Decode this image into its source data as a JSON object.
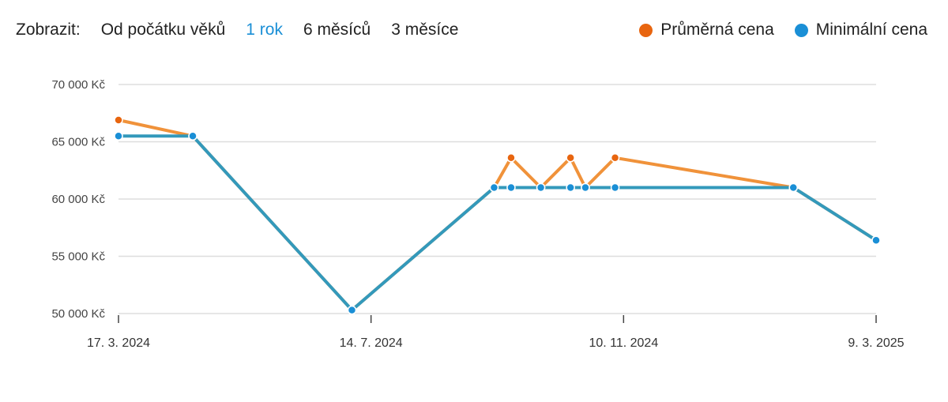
{
  "toolbar": {
    "label": "Zobrazit:",
    "ranges": [
      {
        "label": "Od počátku věků",
        "active": false
      },
      {
        "label": "1 rok",
        "active": true
      },
      {
        "label": "6 měsíců",
        "active": false
      },
      {
        "label": "3 měsíce",
        "active": false
      }
    ],
    "active_color": "#1a8fd6"
  },
  "legend": [
    {
      "label": "Průměrná cena",
      "color": "#e8650f"
    },
    {
      "label": "Minimální cena",
      "color": "#1a8fd6"
    }
  ],
  "chart_data": {
    "type": "line",
    "x_range": [
      "2024-03-17",
      "2025-03-09"
    ],
    "ylim": [
      50000,
      70000
    ],
    "y_ticks": [
      {
        "value": 70000,
        "label": "70 000 Kč"
      },
      {
        "value": 65000,
        "label": "65 000 Kč"
      },
      {
        "value": 60000,
        "label": "60 000 Kč"
      },
      {
        "value": 55000,
        "label": "55 000 Kč"
      },
      {
        "value": 50000,
        "label": "50 000 Kč"
      }
    ],
    "x_ticks": [
      {
        "date": "2024-03-17",
        "label": "17. 3. 2024"
      },
      {
        "date": "2024-07-14",
        "label": "14. 7. 2024"
      },
      {
        "date": "2024-11-10",
        "label": "10. 11. 2024"
      },
      {
        "date": "2025-03-09",
        "label": "9. 3. 2025"
      }
    ],
    "grid": true,
    "series": [
      {
        "name": "Průměrná cena",
        "color": "#f0923a",
        "marker_color": "#e8650f",
        "points": [
          [
            "2024-03-17",
            66900
          ],
          [
            "2024-04-21",
            65500
          ],
          [
            "2024-07-05",
            50300
          ],
          [
            "2024-09-10",
            61000
          ],
          [
            "2024-09-18",
            63600
          ],
          [
            "2024-10-02",
            61000
          ],
          [
            "2024-10-16",
            63600
          ],
          [
            "2024-10-23",
            61000
          ],
          [
            "2024-11-06",
            63600
          ],
          [
            "2025-01-29",
            61000
          ],
          [
            "2025-03-09",
            56400
          ]
        ]
      },
      {
        "name": "Minimální cena",
        "color": "#3399bb",
        "marker_color": "#1a8fd6",
        "points": [
          [
            "2024-03-17",
            65500
          ],
          [
            "2024-04-21",
            65500
          ],
          [
            "2024-07-05",
            50300
          ],
          [
            "2024-09-10",
            61000
          ],
          [
            "2024-09-18",
            61000
          ],
          [
            "2024-10-02",
            61000
          ],
          [
            "2024-10-16",
            61000
          ],
          [
            "2024-10-23",
            61000
          ],
          [
            "2024-11-06",
            61000
          ],
          [
            "2025-01-29",
            61000
          ],
          [
            "2025-03-09",
            56400
          ]
        ]
      }
    ]
  }
}
